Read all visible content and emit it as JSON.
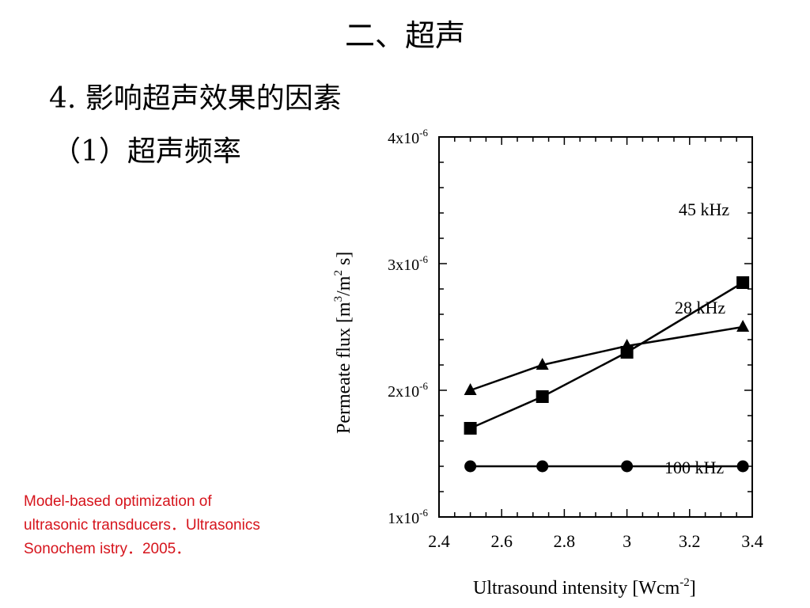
{
  "slide": {
    "title": "二、超声",
    "heading": "4. 影响超声效果的因素",
    "subheading": "（1）超声频率",
    "citation_lines": [
      "Model-based optimization of",
      "ultrasonic transducers．Ultrasonics",
      "Sonochem istry．2005．"
    ],
    "citation_color": "#d6141c"
  },
  "chart_data": {
    "type": "line",
    "xlabel": "Ultrasound intensity [Wcm",
    "xlabel_sup": "-2",
    "xlabel_end": "]",
    "ylabel": "Permeate flux [m",
    "ylabel_sup1": "3",
    "ylabel_mid": "/m",
    "ylabel_sup2": "2",
    "ylabel_end": " s]",
    "xlim": [
      2.4,
      3.4
    ],
    "ylim": [
      1e-06,
      4e-06
    ],
    "xticks": [
      "2.4",
      "2.6",
      "2.8",
      "3",
      "3.2",
      "3.4"
    ],
    "xtick_values": [
      2.4,
      2.6,
      2.8,
      3.0,
      3.2,
      3.4
    ],
    "yticks": [
      {
        "value": 1e-06,
        "base": "1x10",
        "exp": "-6"
      },
      {
        "value": 2e-06,
        "base": "2x10",
        "exp": "-6"
      },
      {
        "value": 3e-06,
        "base": "3x10",
        "exp": "-6"
      },
      {
        "value": 4e-06,
        "base": "4x10",
        "exp": "-6"
      }
    ],
    "series": [
      {
        "name": "45 kHz",
        "marker": "square",
        "x": [
          2.5,
          2.73,
          3.0,
          3.37
        ],
        "y": [
          1.7e-06,
          1.95e-06,
          2.3e-06,
          2.85e-06
        ]
      },
      {
        "name": "28 kHz",
        "marker": "triangle",
        "x": [
          2.5,
          2.73,
          3.0,
          3.37
        ],
        "y": [
          2e-06,
          2.2e-06,
          2.35e-06,
          2.5e-06
        ]
      },
      {
        "name": "100 kHz",
        "marker": "circle",
        "x": [
          2.5,
          2.73,
          3.0,
          3.37
        ],
        "y": [
          1.4e-06,
          1.4e-06,
          1.4e-06,
          1.4e-06
        ]
      }
    ],
    "annotations": [
      "45 kHz",
      "28 kHz",
      "100 kHz"
    ],
    "grid": false
  }
}
